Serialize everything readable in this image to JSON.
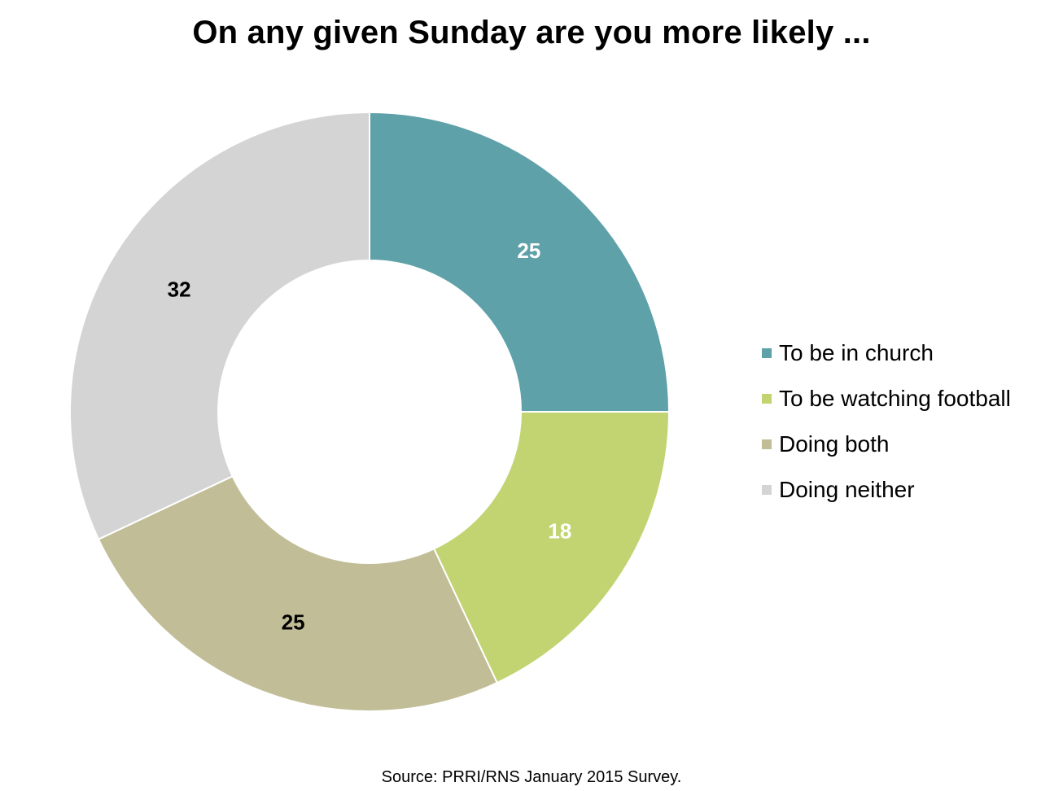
{
  "chart_data": {
    "type": "pie",
    "title": "On any given Sunday are you more likely ...",
    "source": "Source: PRRI/RNS January 2015 Survey.",
    "legend_position": "right",
    "categories": [
      "To be in church",
      "To be watching football",
      "Doing both",
      "Doing neither"
    ],
    "values": [
      25,
      18,
      25,
      32
    ],
    "colors": [
      "#5fa1a9",
      "#c2d471",
      "#c1bd97",
      "#d4d4d4"
    ],
    "label_colors": [
      "#ffffff",
      "#ffffff",
      "#000000",
      "#000000"
    ]
  }
}
